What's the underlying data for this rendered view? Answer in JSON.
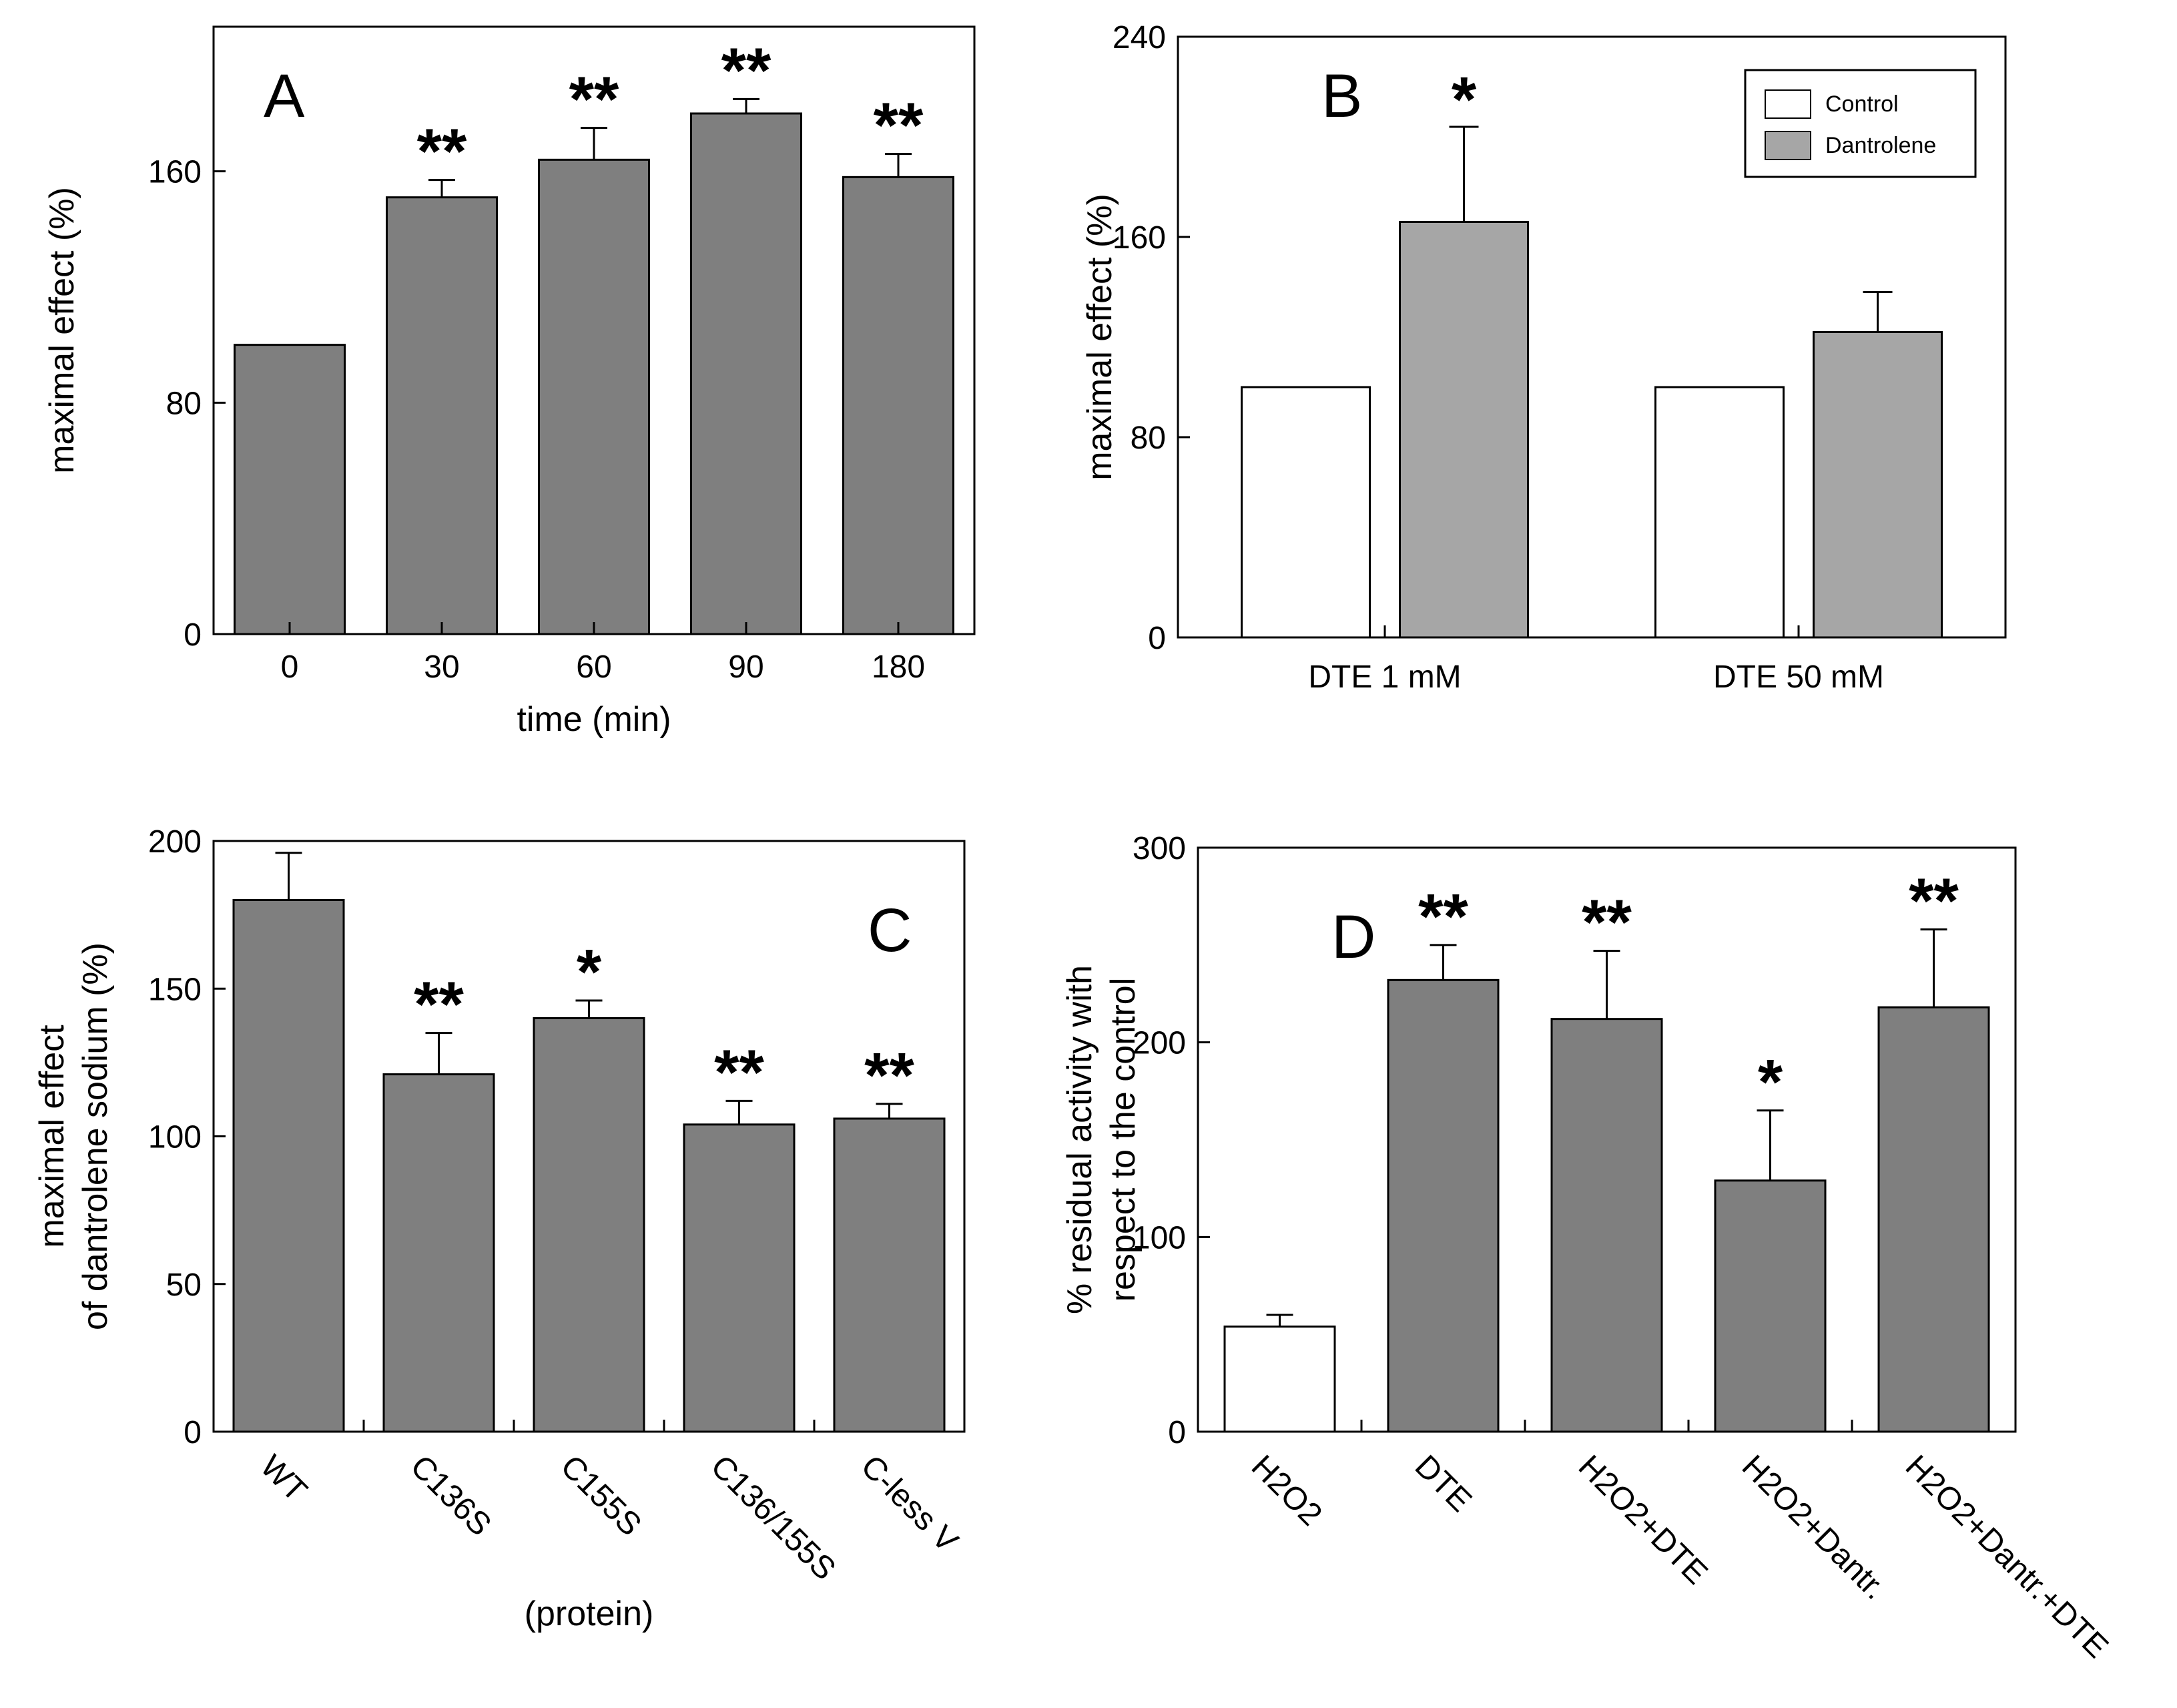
{
  "figure": "multi-panel bar chart figure",
  "chart_data": [
    {
      "panel": "A",
      "type": "bar",
      "categories": [
        "0",
        "30",
        "60",
        "90",
        "180"
      ],
      "values": [
        100,
        151,
        164,
        180,
        158
      ],
      "errors": [
        0,
        6,
        11,
        5,
        8
      ],
      "annotations": [
        "",
        "**",
        "**",
        "**",
        "**"
      ],
      "color": "#7f7f7f",
      "xlabel": "time (min)",
      "ylabel": "maximal effect (%)",
      "ylim": [
        0,
        210
      ],
      "yticks": [
        0,
        80,
        160
      ]
    },
    {
      "panel": "B",
      "type": "bar",
      "categories": [
        "DTE 1 mM",
        "DTE 50 mM"
      ],
      "series": [
        {
          "name": "Control",
          "values": [
            100,
            100
          ],
          "errors": [
            0,
            0
          ],
          "color": "#ffffff"
        },
        {
          "name": "Dantrolene",
          "values": [
            166,
            122
          ],
          "errors": [
            38,
            16
          ],
          "color": "#a6a6a6"
        }
      ],
      "annotations": [
        [
          "",
          "*"
        ],
        [
          "",
          ""
        ]
      ],
      "xlabel": "",
      "ylabel": "maximal effect (%)",
      "ylim": [
        0,
        240
      ],
      "yticks": [
        0,
        80,
        160,
        240
      ],
      "legend_position": "top-right"
    },
    {
      "panel": "C",
      "type": "bar",
      "categories": [
        "WT",
        "C136S",
        "C155S",
        "C136/155S",
        "C-less V"
      ],
      "values": [
        180,
        121,
        140,
        104,
        106
      ],
      "errors": [
        16,
        14,
        6,
        8,
        5
      ],
      "annotations": [
        "",
        "**",
        "*",
        "**",
        "**"
      ],
      "color": "#7f7f7f",
      "xlabel": "(protein)",
      "ylabel": [
        "maximal effect",
        "of dantrolene sodium  (%)"
      ],
      "ylim": [
        0,
        200
      ],
      "yticks": [
        0,
        50,
        100,
        150,
        200
      ]
    },
    {
      "panel": "D",
      "type": "bar",
      "categories": [
        "H2O2",
        "DTE",
        "H2O2+DTE",
        "H2O2+Dantr.",
        "H2O2+Dantr.+DTE"
      ],
      "values": [
        54,
        232,
        212,
        129,
        218
      ],
      "errors": [
        6,
        18,
        35,
        36,
        40
      ],
      "annotations": [
        "",
        "**",
        "**",
        "*",
        "**"
      ],
      "colors": [
        "#ffffff",
        "#7f7f7f",
        "#7f7f7f",
        "#7f7f7f",
        "#7f7f7f"
      ],
      "xlabel": "",
      "ylabel": [
        "% residual activity with",
        "respect to the control"
      ],
      "ylim": [
        0,
        300
      ],
      "yticks": [
        0,
        100,
        200,
        300
      ]
    }
  ]
}
